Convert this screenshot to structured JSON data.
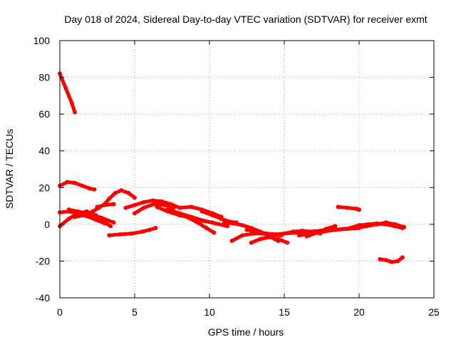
{
  "chart_data": {
    "type": "line",
    "title": "Day 018 of 2024, Sidereal Day-to-day VTEC variation (SDTVAR) for receiver exmt",
    "xlabel": "GPS time / hours",
    "ylabel": "SDTVAR / TECUs",
    "xlim": [
      0,
      25
    ],
    "ylim": [
      -40,
      100
    ],
    "xticks": [
      0,
      5,
      10,
      15,
      20,
      25
    ],
    "yticks": [
      -40,
      -20,
      0,
      20,
      40,
      60,
      80,
      100
    ],
    "grid": true,
    "color": "#ff0000",
    "series": [
      {
        "name": "s1",
        "x": [
          0.0,
          0.4,
          0.8,
          1.0
        ],
        "y": [
          82,
          74,
          66,
          61
        ]
      },
      {
        "name": "s2",
        "x": [
          0.0,
          0.5,
          1.0,
          1.5,
          2.0,
          2.3
        ],
        "y": [
          21,
          23,
          22.5,
          21,
          19.5,
          19
        ]
      },
      {
        "name": "s3",
        "x": [
          0.0,
          0.6,
          1.2,
          1.8,
          2.4,
          3.0,
          3.4
        ],
        "y": [
          -1,
          3,
          6,
          7,
          5,
          1,
          -1
        ]
      },
      {
        "name": "s4",
        "x": [
          0.0,
          0.6,
          1.2,
          1.8,
          2.4,
          3.0
        ],
        "y": [
          6.5,
          7,
          6,
          4.5,
          2.5,
          0.5
        ]
      },
      {
        "name": "s5",
        "x": [
          0.6,
          1.2,
          2.0,
          2.8,
          3.6
        ],
        "y": [
          8,
          7,
          5.5,
          3.5,
          1
        ]
      },
      {
        "name": "s6",
        "x": [
          1.0,
          1.6,
          2.2,
          2.6,
          3.0,
          3.3,
          3.7,
          4.1,
          4.6,
          5.0
        ],
        "y": [
          4,
          5,
          7,
          9,
          11,
          14,
          17,
          18.5,
          17,
          14.5
        ]
      },
      {
        "name": "s7",
        "x": [
          2.5,
          3.0,
          3.6
        ],
        "y": [
          9.5,
          10.5,
          11
        ]
      },
      {
        "name": "s8",
        "x": [
          3.3,
          4.0,
          4.8,
          5.5,
          6.0,
          6.4
        ],
        "y": [
          -6,
          -5.5,
          -5,
          -4,
          -3,
          -2
        ]
      },
      {
        "name": "s9",
        "x": [
          4.4,
          5.0,
          5.6,
          6.2,
          6.8,
          7.4,
          8.0
        ],
        "y": [
          9,
          10.5,
          12,
          13,
          12.5,
          11,
          9
        ]
      },
      {
        "name": "s10",
        "x": [
          5.0,
          5.6,
          6.3,
          7.0,
          7.6
        ],
        "y": [
          6,
          9,
          11,
          10.5,
          9
        ]
      },
      {
        "name": "s11",
        "x": [
          6.5,
          7.2,
          8.0,
          8.8,
          9.5,
          10.2
        ],
        "y": [
          9.5,
          7,
          5,
          3.5,
          2,
          1
        ]
      },
      {
        "name": "s12",
        "x": [
          8.0,
          8.8,
          9.5,
          10.2,
          10.8
        ],
        "y": [
          9,
          9.5,
          8,
          6,
          4
        ]
      },
      {
        "name": "s13",
        "x": [
          7.2,
          8.0,
          8.8,
          9.6,
          10.4,
          11.2
        ],
        "y": [
          8,
          6,
          4,
          2,
          0.5,
          -1
        ]
      },
      {
        "name": "s14",
        "x": [
          8.5,
          9.2,
          9.8,
          10.3
        ],
        "y": [
          4,
          1,
          -2,
          -4.5
        ]
      },
      {
        "name": "s15",
        "x": [
          9.5,
          10.2,
          10.8,
          11.3,
          11.8
        ],
        "y": [
          7,
          5,
          3,
          1.5,
          1
        ]
      },
      {
        "name": "s16",
        "x": [
          11.0,
          11.6,
          12.2,
          12.8,
          13.4,
          14.0,
          14.6
        ],
        "y": [
          1,
          0.5,
          -0.5,
          -2,
          -4,
          -6.5,
          -9
        ]
      },
      {
        "name": "s17",
        "x": [
          11.5,
          12.2,
          13.0,
          13.6,
          14.2,
          14.8
        ],
        "y": [
          -9,
          -6,
          -5,
          -5,
          -5.5,
          -6
        ]
      },
      {
        "name": "s18",
        "x": [
          12.5,
          13.2,
          13.8,
          14.4,
          15.0,
          15.6,
          16.2,
          16.8,
          17.4
        ],
        "y": [
          -3,
          -4,
          -5,
          -5.5,
          -5,
          -4,
          -3.5,
          -4,
          -5
        ]
      },
      {
        "name": "s19",
        "x": [
          12.8,
          13.4,
          14.0,
          14.6,
          15.2
        ],
        "y": [
          -10,
          -8,
          -7,
          -8,
          -10
        ]
      },
      {
        "name": "s20",
        "x": [
          15.0,
          15.8,
          16.6,
          17.4,
          18.2,
          19.0,
          19.8,
          20.5,
          21.2,
          21.8,
          22.4,
          23.0
        ],
        "y": [
          -5,
          -4.5,
          -4,
          -3.5,
          -3,
          -2.5,
          -2,
          -1,
          0,
          1,
          0,
          -1.5
        ]
      },
      {
        "name": "s21",
        "x": [
          16.0,
          16.8,
          17.6,
          18.4,
          19.2,
          20.0
        ],
        "y": [
          -6,
          -5,
          -4,
          -3,
          -2.5,
          -2
        ]
      },
      {
        "name": "s22",
        "x": [
          16.5,
          17.2,
          17.8,
          18.4
        ],
        "y": [
          -6.5,
          -4.5,
          -2.5,
          -1
        ]
      },
      {
        "name": "s23",
        "x": [
          19.4,
          20.0,
          20.6,
          21.2,
          21.8,
          22.4,
          22.9
        ],
        "y": [
          -2,
          -0.5,
          0,
          0.5,
          0,
          -1,
          -2
        ]
      },
      {
        "name": "s24",
        "x": [
          18.6,
          19.2,
          19.8,
          20.0
        ],
        "y": [
          9.5,
          9,
          8.5,
          8
        ]
      },
      {
        "name": "s25",
        "x": [
          21.4,
          21.8,
          22.2,
          22.6,
          22.9
        ],
        "y": [
          -19,
          -19.5,
          -20.5,
          -20,
          -18
        ]
      }
    ]
  }
}
